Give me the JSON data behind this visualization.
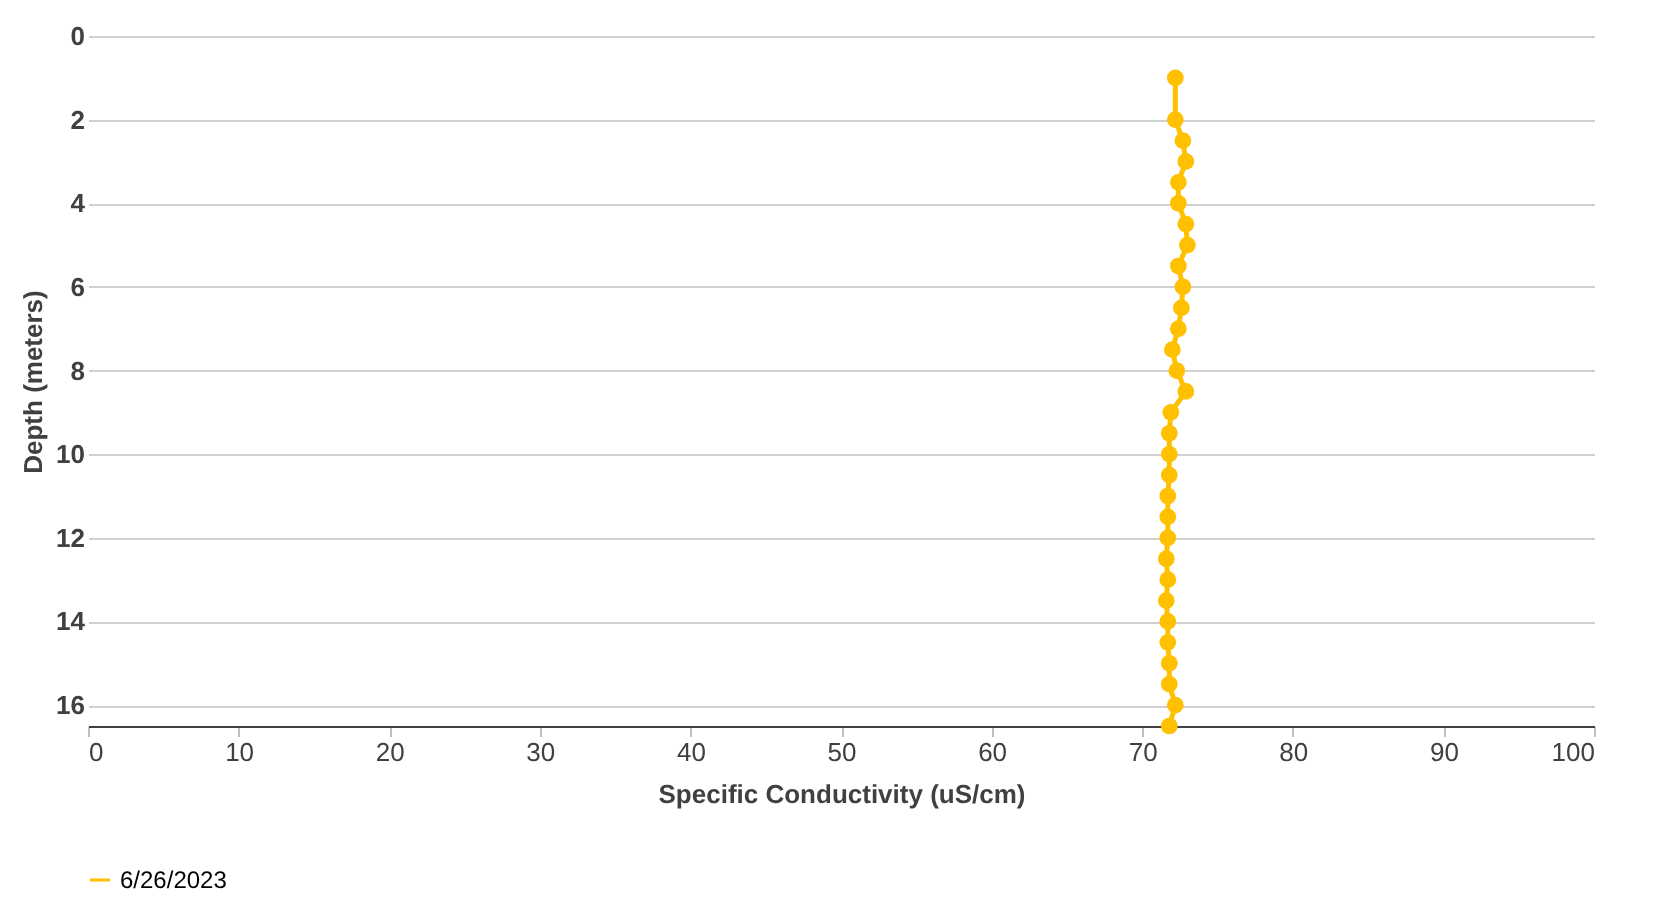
{
  "chart_data": {
    "type": "line",
    "xlabel": "Specific Conductivity (uS/cm)",
    "ylabel": "Depth (meters)",
    "x": [
      72.2,
      72.2,
      72.7,
      72.9,
      72.4,
      72.4,
      72.9,
      73.0,
      72.4,
      72.7,
      72.6,
      72.4,
      72.0,
      72.3,
      72.9,
      71.9,
      71.8,
      71.8,
      71.8,
      71.7,
      71.7,
      71.7,
      71.6,
      71.7,
      71.6,
      71.7,
      71.7,
      71.8,
      71.8,
      72.2,
      71.8
    ],
    "series": [
      {
        "name": "6/26/2023",
        "color": "#ffc000",
        "values": [
          1,
          2,
          2.5,
          3,
          3.5,
          4,
          4.5,
          5,
          5.5,
          6,
          6.5,
          7,
          7.5,
          8,
          8.5,
          9,
          9.5,
          10,
          10.5,
          11,
          11.5,
          12,
          12.5,
          13,
          13.5,
          14,
          14.5,
          15,
          15.5,
          16,
          16.5
        ]
      }
    ],
    "xlim": [
      0,
      100
    ],
    "xticks": [
      0,
      10,
      20,
      30,
      40,
      50,
      60,
      70,
      80,
      90,
      100
    ],
    "ylim": [
      16.5,
      0
    ],
    "yticks": [
      0,
      2,
      4,
      6,
      8,
      10,
      12,
      14,
      16
    ],
    "grid": "y",
    "legend": "bottom",
    "marker": "circle",
    "line_style": "solid"
  }
}
